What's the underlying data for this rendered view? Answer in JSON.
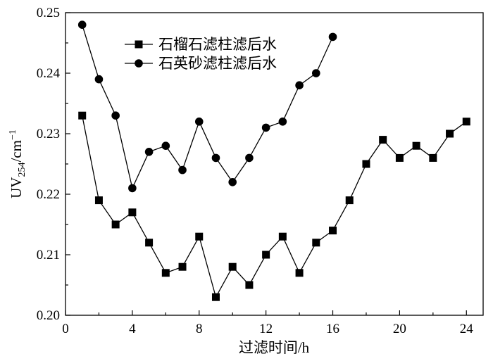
{
  "chart_data": {
    "type": "line",
    "title": "",
    "xlabel": "过滤时间/h",
    "ylabel": "UV254/cm-1",
    "ylabel_main": "UV",
    "ylabel_sub": "254",
    "ylabel_unit": "/cm",
    "ylabel_sup": "−1",
    "xlim": [
      0,
      25
    ],
    "ylim": [
      0.2,
      0.25
    ],
    "xticks": [
      0,
      4,
      8,
      12,
      16,
      20,
      24
    ],
    "yticks": [
      0.2,
      0.21,
      0.22,
      0.23,
      0.24,
      0.25
    ],
    "xtick_labels": [
      "0",
      "4",
      "8",
      "12",
      "16",
      "20",
      "24"
    ],
    "ytick_labels": [
      "0.20",
      "0.21",
      "0.22",
      "0.23",
      "0.24",
      "0.25"
    ],
    "grid": false,
    "legend_position": "top-center",
    "series": [
      {
        "name": "石榴石滤柱滤后水",
        "marker": "square",
        "color": "#000000",
        "x": [
          1,
          2,
          3,
          4,
          5,
          6,
          7,
          8,
          9,
          10,
          11,
          12,
          13,
          14,
          15,
          16,
          17,
          18,
          19,
          20,
          21,
          22,
          23,
          24
        ],
        "values": [
          0.233,
          0.219,
          0.215,
          0.217,
          0.212,
          0.207,
          0.208,
          0.213,
          0.203,
          0.208,
          0.205,
          0.21,
          0.213,
          0.207,
          0.212,
          0.214,
          0.219,
          0.225,
          0.229,
          0.226,
          0.228,
          0.226,
          0.23,
          0.232
        ]
      },
      {
        "name": "石英砂滤柱滤后水",
        "marker": "circle",
        "color": "#000000",
        "x": [
          1,
          2,
          3,
          4,
          5,
          6,
          7,
          8,
          9,
          10,
          11,
          12,
          13,
          14,
          15,
          16
        ],
        "values": [
          0.248,
          0.239,
          0.233,
          0.221,
          0.227,
          0.228,
          0.224,
          0.232,
          0.226,
          0.222,
          0.226,
          0.231,
          0.232,
          0.238,
          0.24,
          0.246
        ]
      }
    ]
  }
}
